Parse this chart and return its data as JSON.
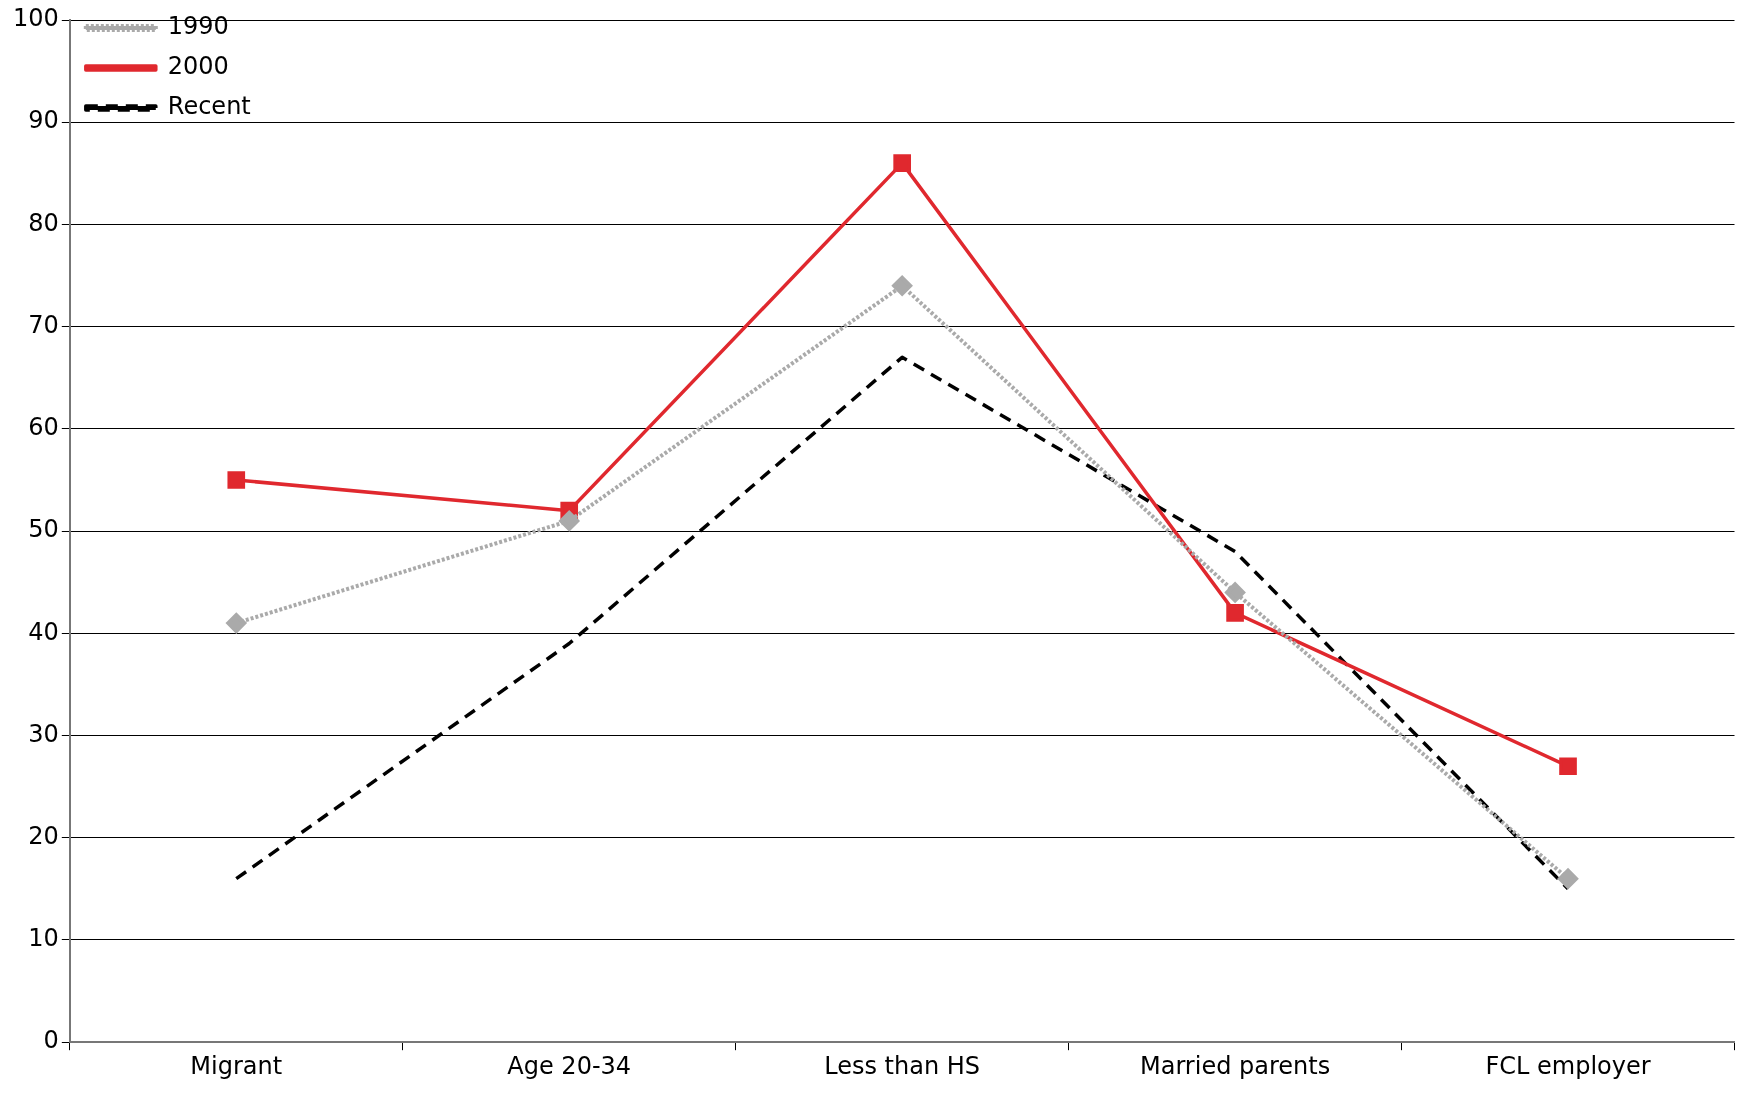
{
  "chart_data": {
    "type": "line",
    "categories": [
      "Migrant",
      "Age 20-34",
      "Less than HS",
      "Married parents",
      "FCL employer"
    ],
    "series": [
      {
        "name": "1990",
        "color": "#aaaaaa",
        "values": [
          41,
          51,
          74,
          44,
          16
        ],
        "marker": "diamond",
        "line_style": "dotted"
      },
      {
        "name": "2000",
        "color": "#e0282e",
        "values": [
          55,
          52,
          86,
          42,
          27
        ],
        "marker": "square",
        "line_style": "solid"
      },
      {
        "name": "Recent",
        "color": "#000000",
        "values": [
          16,
          39,
          67,
          48,
          15
        ],
        "marker": "none",
        "line_style": "dashed"
      }
    ],
    "ylim": [
      0,
      100
    ],
    "yticks": [
      0,
      10,
      20,
      30,
      40,
      50,
      60,
      70,
      80,
      90,
      100
    ],
    "grid": "y",
    "legend": "top left"
  }
}
